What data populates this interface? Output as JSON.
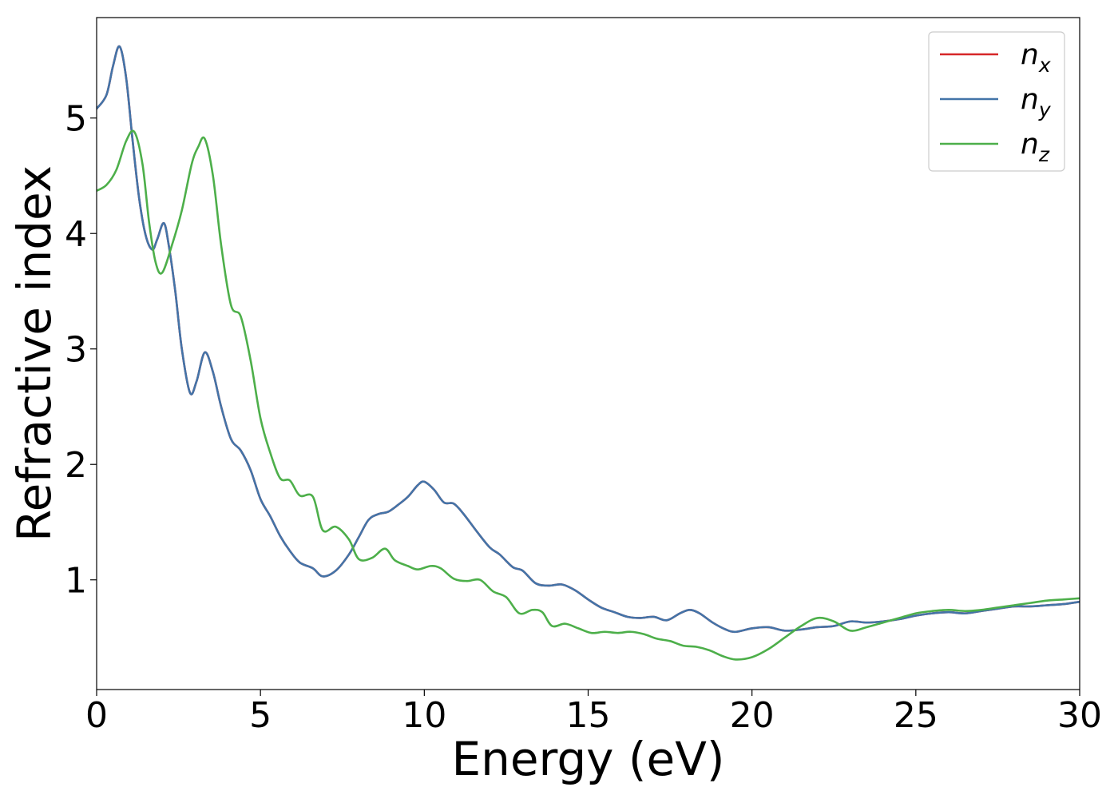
{
  "chart_data": {
    "type": "line",
    "title": "",
    "xlabel": "Energy (eV)",
    "ylabel": "Refractive index",
    "xlim": [
      0,
      30
    ],
    "ylim": [
      0.05,
      5.87
    ],
    "xticks": [
      0,
      5,
      10,
      15,
      20,
      25,
      30
    ],
    "yticks": [
      1,
      2,
      3,
      4,
      5
    ],
    "grid": false,
    "legend_position": "top-right",
    "series": [
      {
        "name": "n_x",
        "legend_base": "n",
        "legend_sub": "x",
        "color": "#d62728",
        "x": [
          0,
          0.3,
          0.5,
          0.7,
          0.9,
          1.1,
          1.3,
          1.5,
          1.7,
          1.85,
          2.05,
          2.2,
          2.4,
          2.6,
          2.85,
          3.05,
          3.3,
          3.55,
          3.8,
          4.1,
          4.4,
          4.7,
          5.0,
          5.3,
          5.6,
          5.9,
          6.2,
          6.6,
          6.9,
          7.3,
          7.7,
          8.0,
          8.3,
          8.6,
          8.9,
          9.2,
          9.5,
          9.8,
          10.0,
          10.3,
          10.6,
          10.9,
          11.2,
          11.6,
          12.0,
          12.3,
          12.7,
          13.0,
          13.4,
          13.8,
          14.2,
          14.6,
          15.0,
          15.4,
          15.8,
          16.2,
          16.6,
          17.0,
          17.4,
          17.8,
          18.1,
          18.4,
          18.8,
          19.2,
          19.5,
          20.0,
          20.5,
          21.0,
          21.5,
          22.0,
          22.5,
          23.0,
          23.5,
          24.0,
          24.5,
          25.0,
          25.5,
          26.0,
          26.5,
          27.0,
          27.5,
          28.0,
          28.5,
          29.0,
          29.5,
          30.0
        ],
        "y": [
          5.08,
          5.2,
          5.45,
          5.62,
          5.35,
          4.8,
          4.3,
          3.98,
          3.86,
          3.95,
          4.09,
          3.9,
          3.5,
          3.0,
          2.62,
          2.72,
          2.97,
          2.8,
          2.5,
          2.22,
          2.12,
          1.95,
          1.7,
          1.55,
          1.38,
          1.25,
          1.15,
          1.1,
          1.03,
          1.08,
          1.22,
          1.37,
          1.52,
          1.57,
          1.59,
          1.65,
          1.72,
          1.82,
          1.85,
          1.78,
          1.67,
          1.66,
          1.57,
          1.42,
          1.28,
          1.22,
          1.11,
          1.08,
          0.97,
          0.95,
          0.96,
          0.91,
          0.83,
          0.76,
          0.72,
          0.68,
          0.67,
          0.68,
          0.65,
          0.71,
          0.74,
          0.71,
          0.63,
          0.57,
          0.55,
          0.58,
          0.59,
          0.56,
          0.57,
          0.59,
          0.6,
          0.64,
          0.63,
          0.64,
          0.66,
          0.69,
          0.71,
          0.72,
          0.71,
          0.73,
          0.75,
          0.77,
          0.77,
          0.78,
          0.79,
          0.81
        ]
      },
      {
        "name": "n_y",
        "legend_base": "n",
        "legend_sub": "y",
        "color": "#4374a8",
        "x": [
          0,
          0.3,
          0.5,
          0.7,
          0.9,
          1.1,
          1.3,
          1.5,
          1.7,
          1.85,
          2.05,
          2.2,
          2.4,
          2.6,
          2.85,
          3.05,
          3.3,
          3.55,
          3.8,
          4.1,
          4.4,
          4.7,
          5.0,
          5.3,
          5.6,
          5.9,
          6.2,
          6.6,
          6.9,
          7.3,
          7.7,
          8.0,
          8.3,
          8.6,
          8.9,
          9.2,
          9.5,
          9.8,
          10.0,
          10.3,
          10.6,
          10.9,
          11.2,
          11.6,
          12.0,
          12.3,
          12.7,
          13.0,
          13.4,
          13.8,
          14.2,
          14.6,
          15.0,
          15.4,
          15.8,
          16.2,
          16.6,
          17.0,
          17.4,
          17.8,
          18.1,
          18.4,
          18.8,
          19.2,
          19.5,
          20.0,
          20.5,
          21.0,
          21.5,
          22.0,
          22.5,
          23.0,
          23.5,
          24.0,
          24.5,
          25.0,
          25.5,
          26.0,
          26.5,
          27.0,
          27.5,
          28.0,
          28.5,
          29.0,
          29.5,
          30.0
        ],
        "y": [
          5.08,
          5.2,
          5.45,
          5.62,
          5.35,
          4.8,
          4.3,
          3.98,
          3.86,
          3.95,
          4.09,
          3.9,
          3.5,
          3.0,
          2.62,
          2.72,
          2.97,
          2.8,
          2.5,
          2.22,
          2.12,
          1.95,
          1.7,
          1.55,
          1.38,
          1.25,
          1.15,
          1.1,
          1.03,
          1.08,
          1.22,
          1.37,
          1.52,
          1.57,
          1.59,
          1.65,
          1.72,
          1.82,
          1.85,
          1.78,
          1.67,
          1.66,
          1.57,
          1.42,
          1.28,
          1.22,
          1.11,
          1.08,
          0.97,
          0.95,
          0.96,
          0.91,
          0.83,
          0.76,
          0.72,
          0.68,
          0.67,
          0.68,
          0.65,
          0.71,
          0.74,
          0.71,
          0.63,
          0.57,
          0.55,
          0.58,
          0.59,
          0.56,
          0.57,
          0.59,
          0.6,
          0.64,
          0.63,
          0.64,
          0.66,
          0.69,
          0.71,
          0.72,
          0.71,
          0.73,
          0.75,
          0.77,
          0.77,
          0.78,
          0.79,
          0.81
        ]
      },
      {
        "name": "n_z",
        "legend_base": "n",
        "legend_sub": "z",
        "color": "#4daf4a",
        "x": [
          0,
          0.3,
          0.6,
          0.9,
          1.15,
          1.4,
          1.6,
          1.8,
          2.0,
          2.3,
          2.6,
          2.9,
          3.1,
          3.3,
          3.55,
          3.8,
          4.1,
          4.4,
          4.7,
          5.0,
          5.3,
          5.6,
          5.9,
          6.2,
          6.6,
          6.9,
          7.3,
          7.7,
          8.0,
          8.4,
          8.8,
          9.1,
          9.5,
          9.8,
          10.2,
          10.5,
          10.9,
          11.3,
          11.7,
          12.1,
          12.5,
          12.9,
          13.3,
          13.6,
          13.9,
          14.3,
          14.7,
          15.1,
          15.5,
          15.9,
          16.3,
          16.7,
          17.1,
          17.5,
          17.9,
          18.3,
          18.7,
          19.1,
          19.5,
          20.0,
          20.5,
          21.0,
          21.5,
          22.0,
          22.5,
          23.0,
          23.5,
          24.0,
          24.5,
          25.0,
          25.5,
          26.0,
          26.5,
          27.0,
          27.5,
          28.0,
          28.5,
          29.0,
          29.5,
          30.0
        ],
        "y": [
          4.37,
          4.42,
          4.55,
          4.8,
          4.88,
          4.6,
          4.1,
          3.75,
          3.66,
          3.9,
          4.2,
          4.6,
          4.75,
          4.82,
          4.5,
          3.9,
          3.38,
          3.28,
          2.9,
          2.4,
          2.1,
          1.88,
          1.86,
          1.73,
          1.72,
          1.43,
          1.46,
          1.35,
          1.18,
          1.19,
          1.27,
          1.17,
          1.12,
          1.09,
          1.12,
          1.1,
          1.01,
          0.99,
          1.0,
          0.9,
          0.85,
          0.71,
          0.74,
          0.72,
          0.6,
          0.62,
          0.58,
          0.54,
          0.55,
          0.54,
          0.55,
          0.53,
          0.49,
          0.47,
          0.43,
          0.42,
          0.39,
          0.34,
          0.31,
          0.33,
          0.4,
          0.5,
          0.6,
          0.67,
          0.64,
          0.56,
          0.59,
          0.63,
          0.67,
          0.71,
          0.73,
          0.74,
          0.73,
          0.74,
          0.76,
          0.78,
          0.8,
          0.82,
          0.83,
          0.84
        ]
      }
    ]
  }
}
